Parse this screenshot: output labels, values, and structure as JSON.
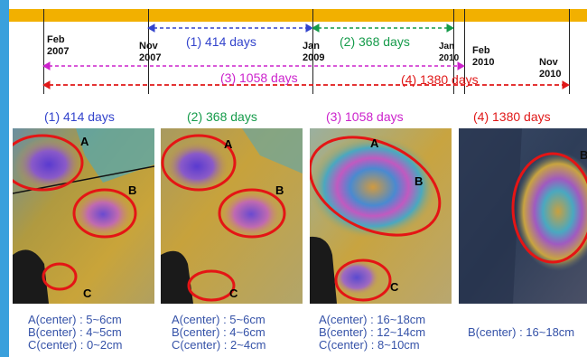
{
  "timeline": {
    "dates": [
      {
        "line1": "Feb",
        "line2": "2007"
      },
      {
        "line1": "Nov",
        "line2": "2007"
      },
      {
        "line1": "Jan",
        "line2": "2009"
      },
      {
        "line1": "Jan",
        "line2": "2010"
      },
      {
        "line1": "Feb",
        "line2": "2010"
      },
      {
        "line1": "Nov",
        "line2": "2010"
      }
    ],
    "intervals": [
      {
        "label": "(1) 414 days",
        "color": "#3344cc"
      },
      {
        "label": "(2) 368 days",
        "color": "#159b4a"
      },
      {
        "label": "(3) 1058 days",
        "color": "#cc22cc"
      },
      {
        "label": "(4) 1380 days",
        "color": "#e01818"
      }
    ]
  },
  "panels": [
    {
      "title": "(1) 414 days",
      "color": "#3344cc",
      "labels": [
        "A",
        "B",
        "C"
      ],
      "captions": [
        "A(center) :  5~6cm",
        "B(center) :  4~5cm",
        "C(center) :  0~2cm"
      ]
    },
    {
      "title": "(2) 368 days",
      "color": "#159b4a",
      "labels": [
        "A",
        "B",
        "C"
      ],
      "captions": [
        "A(center) :  5~6cm",
        "B(center) :  4~6cm",
        "C(center) :  2~4cm"
      ]
    },
    {
      "title": "(3) 1058 days",
      "color": "#cc22cc",
      "labels": [
        "A",
        "B",
        "C"
      ],
      "captions": [
        "A(center) :  16~18cm",
        "B(center) :  12~14cm",
        "C(center) :  8~10cm"
      ]
    },
    {
      "title": "(4) 1380 days",
      "color": "#e01818",
      "labels": [
        "B"
      ],
      "captions": [
        "B(center) :  16~18cm"
      ]
    }
  ]
}
